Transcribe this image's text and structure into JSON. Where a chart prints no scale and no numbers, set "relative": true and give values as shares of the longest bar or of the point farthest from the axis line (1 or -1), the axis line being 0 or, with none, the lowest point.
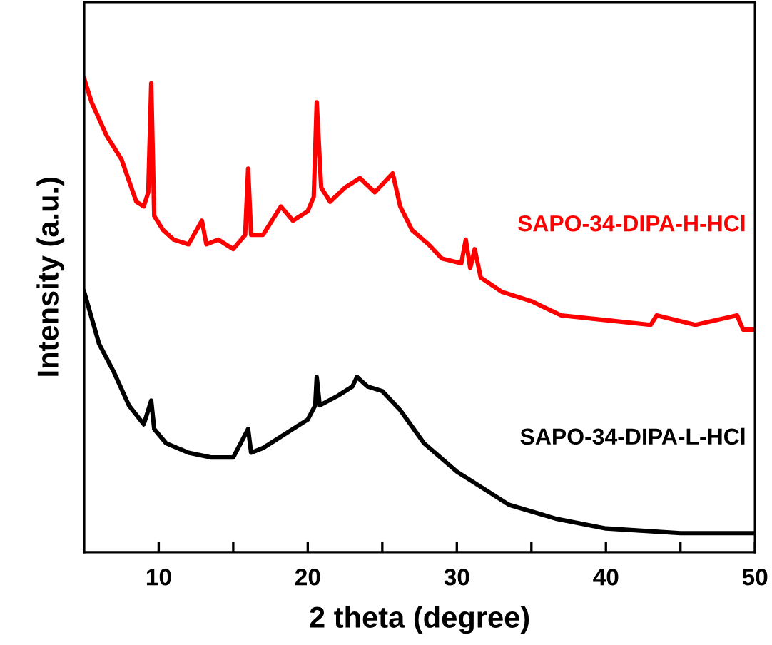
{
  "chart_data": {
    "type": "line",
    "relative": true,
    "xlabel": "2 theta (degree)",
    "ylabel": "Intensity (a.u.)",
    "xlim": [
      5,
      50
    ],
    "xticks": [
      10,
      {
        "value": 15,
        "label": null
      },
      20,
      {
        "value": 25,
        "label": null
      },
      30,
      {
        "value": 35,
        "label": null
      },
      40,
      {
        "value": 45,
        "label": null
      },
      50
    ],
    "grid": false,
    "legend": false,
    "marker": "none",
    "line_style": "solid",
    "series": [
      {
        "name": "SAPO-34-DIPA-H-HCl",
        "color": "#ff0000",
        "x": [
          5.0,
          5.5,
          6.5,
          7.5,
          8.5,
          9.0,
          9.3,
          9.5,
          9.7,
          10.3,
          11,
          12,
          12.9,
          13.2,
          14,
          15,
          15.8,
          16.0,
          16.2,
          17,
          18.2,
          19,
          20,
          20.4,
          20.6,
          20.9,
          21.5,
          22.5,
          23.5,
          24.5,
          25.7,
          26.2,
          27,
          28.1,
          29,
          30.3,
          30.6,
          30.9,
          31.2,
          31.6,
          33,
          35,
          37,
          40,
          43,
          43.4,
          46,
          48.8,
          49.2,
          50
        ],
        "values": [
          1.0,
          0.95,
          0.88,
          0.83,
          0.74,
          0.73,
          0.76,
          0.99,
          0.71,
          0.68,
          0.66,
          0.65,
          0.7,
          0.65,
          0.66,
          0.64,
          0.67,
          0.81,
          0.67,
          0.67,
          0.73,
          0.7,
          0.72,
          0.75,
          0.95,
          0.77,
          0.74,
          0.77,
          0.79,
          0.76,
          0.8,
          0.73,
          0.68,
          0.65,
          0.62,
          0.61,
          0.66,
          0.6,
          0.64,
          0.58,
          0.55,
          0.53,
          0.5,
          0.49,
          0.48,
          0.5,
          0.48,
          0.5,
          0.47,
          0.47
        ]
      },
      {
        "name": "SAPO-34-DIPA-L-HCl",
        "color": "#000000",
        "x": [
          5,
          6,
          7,
          8,
          9,
          9.5,
          9.7,
          10.5,
          12,
          13.5,
          15,
          16.0,
          16.2,
          17,
          18,
          19,
          20,
          20.5,
          20.6,
          20.8,
          22,
          23,
          23.3,
          24,
          25,
          26.2,
          27.8,
          30,
          33.5,
          36.7,
          40,
          45,
          50
        ],
        "values": [
          0.55,
          0.44,
          0.38,
          0.31,
          0.27,
          0.32,
          0.26,
          0.23,
          0.21,
          0.2,
          0.2,
          0.26,
          0.21,
          0.22,
          0.24,
          0.26,
          0.28,
          0.31,
          0.37,
          0.31,
          0.33,
          0.35,
          0.37,
          0.35,
          0.34,
          0.3,
          0.23,
          0.17,
          0.1,
          0.07,
          0.05,
          0.04,
          0.04
        ]
      }
    ]
  }
}
